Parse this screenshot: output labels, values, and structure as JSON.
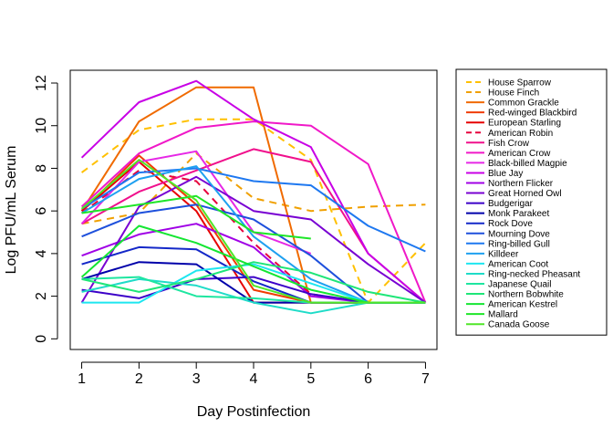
{
  "chart_data": {
    "type": "line",
    "title": "",
    "xlabel": "Day Postinfection",
    "ylabel": "Log PFU/mL Serum",
    "x": [
      1,
      2,
      3,
      4,
      5,
      6,
      7
    ],
    "x_ticks": [
      "1",
      "2",
      "3",
      "4",
      "5",
      "6",
      "7"
    ],
    "y_ticks": [
      "0",
      "2",
      "4",
      "6",
      "8",
      "10",
      "12"
    ],
    "xlim": [
      0.8,
      7.2
    ],
    "ylim": [
      -0.5,
      12.6
    ],
    "grid": false,
    "legend_position": "right",
    "series": [
      {
        "name": "House Sparrow",
        "color": "#FFC000",
        "dash": "dashed",
        "values": [
          7.8,
          9.8,
          10.3,
          10.3,
          8.4,
          1.7,
          4.5
        ]
      },
      {
        "name": "House Finch",
        "color": "#F0A000",
        "dash": "dashed",
        "values": [
          5.4,
          5.9,
          8.7,
          6.6,
          6.0,
          6.2,
          6.3
        ]
      },
      {
        "name": "Common Grackle",
        "color": "#F06A00",
        "dash": "solid",
        "values": [
          6.0,
          10.2,
          11.8,
          11.8,
          1.7,
          1.7,
          1.7
        ]
      },
      {
        "name": "Red-winged Blackbird",
        "color": "#F03C00",
        "dash": "solid",
        "values": [
          6.0,
          8.6,
          6.3,
          2.3,
          1.7,
          1.7,
          1.7
        ]
      },
      {
        "name": "European Starling",
        "color": "#E60000",
        "dash": "solid",
        "values": [
          6.0,
          8.3,
          6.0,
          1.7,
          1.7,
          1.7,
          1.7
        ]
      },
      {
        "name": "American Robin",
        "color": "#E6003C",
        "dash": "dashed",
        "values": [
          5.9,
          7.9,
          7.4,
          4.5,
          2.1,
          1.7,
          1.7
        ]
      },
      {
        "name": "Fish Crow",
        "color": "#F0108C",
        "dash": "solid",
        "values": [
          5.4,
          6.9,
          7.9,
          8.9,
          8.3,
          4.0,
          1.7
        ]
      },
      {
        "name": "American Crow",
        "color": "#F018C8",
        "dash": "solid",
        "values": [
          6.2,
          8.7,
          9.9,
          10.2,
          10.0,
          8.2,
          1.7
        ]
      },
      {
        "name": "Black-billed Magpie",
        "color": "#E628E6",
        "dash": "solid",
        "values": [
          5.4,
          8.3,
          8.8,
          5.0,
          4.0,
          null,
          null
        ]
      },
      {
        "name": "Blue Jay",
        "color": "#C800E6",
        "dash": "solid",
        "values": [
          8.5,
          11.1,
          12.1,
          10.3,
          9.0,
          4.0,
          1.7
        ]
      },
      {
        "name": "Northern Flicker",
        "color": "#A000E6",
        "dash": "solid",
        "values": [
          3.9,
          4.9,
          5.4,
          4.3,
          2.0,
          1.7,
          1.7
        ]
      },
      {
        "name": "Great Horned Owl",
        "color": "#7800D2",
        "dash": "solid",
        "values": [
          1.7,
          6.2,
          7.6,
          6.0,
          5.6,
          3.5,
          1.7
        ]
      },
      {
        "name": "Budgerigar",
        "color": "#3C00C8",
        "dash": "solid",
        "values": [
          2.3,
          1.9,
          2.8,
          2.9,
          2.1,
          1.7,
          1.7
        ]
      },
      {
        "name": "Monk Parakeet",
        "color": "#0000AA",
        "dash": "solid",
        "values": [
          2.8,
          3.6,
          3.5,
          1.7,
          1.7,
          1.7,
          1.7
        ]
      },
      {
        "name": "Rock Dove",
        "color": "#1428C8",
        "dash": "solid",
        "values": [
          3.5,
          4.3,
          4.2,
          2.7,
          1.7,
          1.7,
          1.7
        ]
      },
      {
        "name": "Mourning Dove",
        "color": "#1E50DC",
        "dash": "solid",
        "values": [
          4.8,
          5.9,
          6.3,
          5.6,
          3.9,
          1.7,
          1.7
        ]
      },
      {
        "name": "Ring-billed Gull",
        "color": "#1E78F0",
        "dash": "solid",
        "values": [
          6.1,
          7.8,
          8.0,
          7.4,
          7.2,
          5.3,
          4.1
        ]
      },
      {
        "name": "Killdeer",
        "color": "#1EA0F0",
        "dash": "solid",
        "values": [
          5.9,
          7.5,
          8.1,
          4.8,
          2.8,
          1.7,
          1.7
        ]
      },
      {
        "name": "American Coot",
        "color": "#1EE6F0",
        "dash": "solid",
        "values": [
          1.7,
          1.7,
          3.2,
          3.5,
          2.6,
          1.7,
          1.7
        ]
      },
      {
        "name": "Ring-necked Pheasant",
        "color": "#1EDCC8",
        "dash": "solid",
        "values": [
          2.2,
          2.8,
          2.5,
          1.7,
          1.2,
          1.7,
          1.7
        ]
      },
      {
        "name": "Japanese Quail",
        "color": "#1EE6A0",
        "dash": "solid",
        "values": [
          2.8,
          2.9,
          2.0,
          1.9,
          1.7,
          1.7,
          1.7
        ]
      },
      {
        "name": "Northern Bobwhite",
        "color": "#1EE678",
        "dash": "solid",
        "values": [
          2.8,
          2.2,
          2.8,
          3.6,
          3.1,
          2.2,
          1.7
        ]
      },
      {
        "name": "American Kestrel",
        "color": "#14E632",
        "dash": "solid",
        "values": [
          2.9,
          5.3,
          4.5,
          3.4,
          2.3,
          1.7,
          1.7
        ]
      },
      {
        "name": "Mallard",
        "color": "#1EE628",
        "dash": "solid",
        "values": [
          5.9,
          6.3,
          6.7,
          5.0,
          4.7,
          null,
          null
        ]
      },
      {
        "name": "Canada Goose",
        "color": "#50E628",
        "dash": "solid",
        "values": [
          6.1,
          8.4,
          6.5,
          2.5,
          1.7,
          1.7,
          1.7
        ]
      }
    ]
  }
}
